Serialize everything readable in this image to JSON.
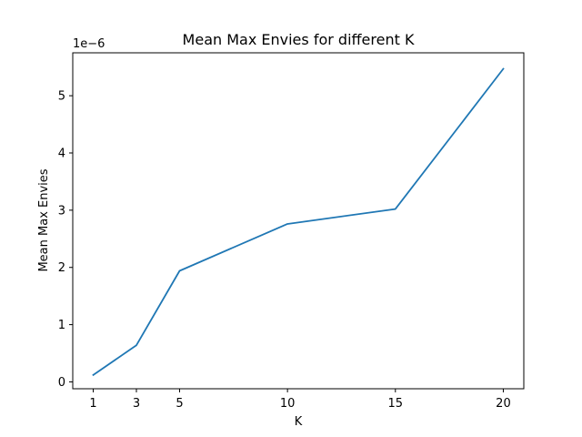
{
  "chart_data": {
    "type": "line",
    "title": "Mean Max Envies for different K",
    "xlabel": "K",
    "ylabel": "Mean Max Envies",
    "offset_label": "1e−6",
    "x": [
      1,
      3,
      5,
      10,
      15,
      20
    ],
    "x_ticks": [
      1,
      3,
      5,
      10,
      15,
      20
    ],
    "y_ticks": [
      0,
      1,
      2,
      3,
      4,
      5
    ],
    "y_scale_factor": 1e-06,
    "xlim": [
      0.05,
      20.95
    ],
    "ylim": [
      -1.2e-07,
      5.75e-06
    ],
    "series": [
      {
        "values": [
          1.2e-07,
          6.4e-07,
          1.94e-06,
          2.76e-06,
          3.02e-06,
          5.47e-06
        ],
        "color": "#1f77b4"
      }
    ],
    "grid": false,
    "legend": "none"
  }
}
